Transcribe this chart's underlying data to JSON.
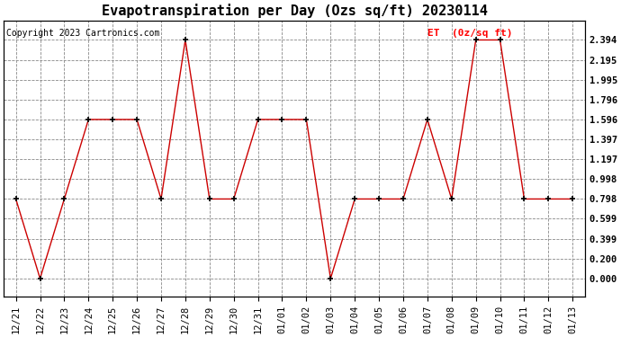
{
  "title": "Evapotranspiration per Day (Ozs sq/ft) 20230114",
  "copyright": "Copyright 2023 Cartronics.com",
  "legend_label": "ET  (0z/sq ft)",
  "dates": [
    "12/21",
    "12/22",
    "12/23",
    "12/24",
    "12/25",
    "12/26",
    "12/27",
    "12/28",
    "12/29",
    "12/30",
    "12/31",
    "01/01",
    "01/02",
    "01/03",
    "01/04",
    "01/05",
    "01/06",
    "01/07",
    "01/08",
    "01/09",
    "01/10",
    "01/11",
    "01/12",
    "01/13"
  ],
  "values": [
    0.798,
    0.0,
    0.798,
    1.596,
    1.596,
    1.596,
    0.798,
    2.394,
    0.798,
    0.798,
    1.596,
    1.596,
    1.596,
    0.0,
    0.798,
    0.798,
    0.798,
    1.596,
    0.798,
    2.394,
    2.394,
    0.798,
    0.798,
    0.798
  ],
  "line_color": "#cc0000",
  "marker_color": "#000000",
  "yticks": [
    0.0,
    0.2,
    0.399,
    0.599,
    0.798,
    0.998,
    1.197,
    1.397,
    1.596,
    1.796,
    1.995,
    2.195,
    2.394
  ],
  "background_color": "#ffffff",
  "grid_color": "#888888",
  "title_fontsize": 11,
  "tick_fontsize": 7.5,
  "copyright_fontsize": 7,
  "legend_fontsize": 8
}
